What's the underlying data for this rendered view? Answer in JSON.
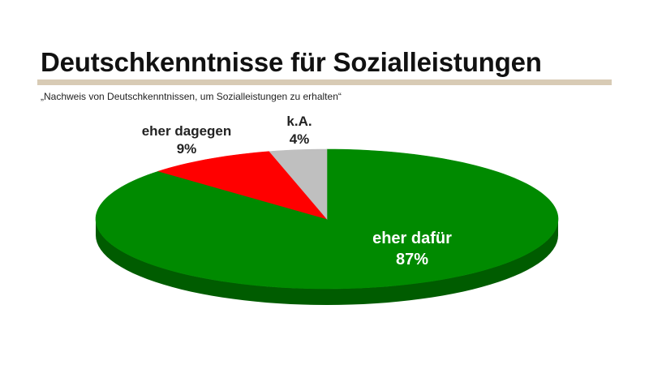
{
  "header": {
    "title": "Deutschkenntnisse für Sozialleistungen",
    "subtitle": "„Nachweis von Deutschkenntnissen, um Sozialleistungen zu erhalten“"
  },
  "chart_data": {
    "type": "pie",
    "style": "3d",
    "title": "Deutschkenntnisse für Sozialleistungen",
    "subtitle": "„Nachweis von Deutschkenntnissen, um Sozialleistungen zu erhalten“",
    "unit": "%",
    "slices": [
      {
        "label": "eher dafür",
        "value": 87,
        "value_label": "87%",
        "color": "#008a00",
        "side_color": "#005c00",
        "label_color": "#ffffff"
      },
      {
        "label": "eher dagegen",
        "value": 9,
        "value_label": "9%",
        "color": "#ff0000",
        "side_color": "#b00000",
        "label_color": "#222222"
      },
      {
        "label": "k.A.",
        "value": 4,
        "value_label": "4%",
        "color": "#bfbfbf",
        "side_color": "#8c8c8c",
        "label_color": "#222222"
      }
    ]
  }
}
